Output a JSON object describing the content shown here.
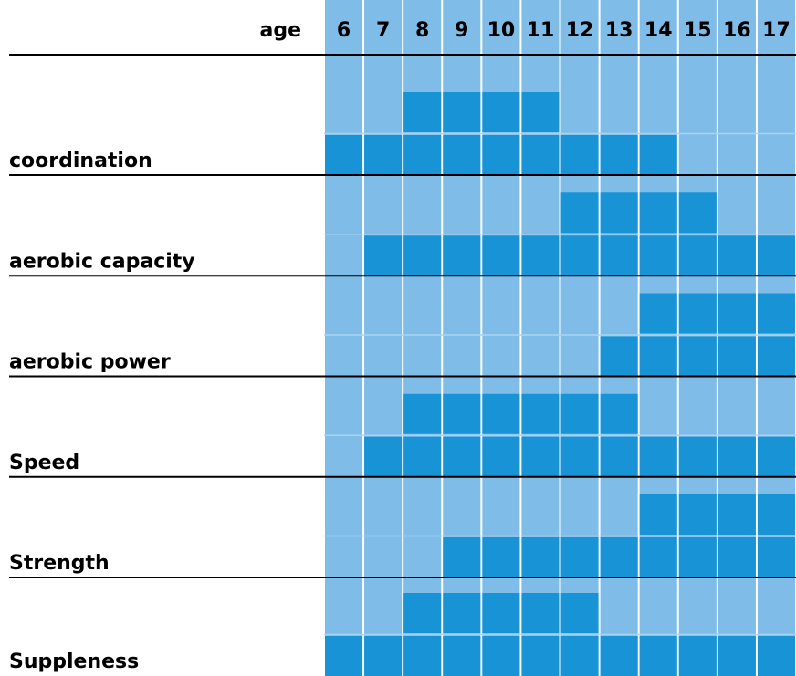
{
  "header": {
    "label": "age",
    "ages": [
      "6",
      "7",
      "8",
      "9",
      "10",
      "11",
      "12",
      "13",
      "14",
      "15",
      "16",
      "17"
    ]
  },
  "rows": [
    {
      "label": "coordination",
      "upper": [
        false,
        false,
        true,
        true,
        true,
        true,
        false,
        false,
        false,
        false,
        false,
        false
      ],
      "lower": [
        true,
        true,
        true,
        true,
        true,
        true,
        true,
        true,
        true,
        false,
        false,
        false
      ]
    },
    {
      "label": "aerobic capacity",
      "upper": [
        false,
        false,
        false,
        false,
        false,
        false,
        true,
        true,
        true,
        true,
        false,
        false
      ],
      "lower": [
        false,
        true,
        true,
        true,
        true,
        true,
        true,
        true,
        true,
        true,
        true,
        true
      ]
    },
    {
      "label": "aerobic power",
      "upper": [
        false,
        false,
        false,
        false,
        false,
        false,
        false,
        false,
        true,
        true,
        true,
        true
      ],
      "lower": [
        false,
        false,
        false,
        false,
        false,
        false,
        false,
        true,
        true,
        true,
        true,
        true
      ]
    },
    {
      "label": "Speed",
      "upper": [
        false,
        false,
        true,
        true,
        true,
        true,
        true,
        true,
        false,
        false,
        false,
        false
      ],
      "lower": [
        false,
        true,
        true,
        true,
        true,
        true,
        true,
        true,
        true,
        true,
        true,
        true
      ]
    },
    {
      "label": "Strength",
      "upper": [
        false,
        false,
        false,
        false,
        false,
        false,
        false,
        false,
        true,
        true,
        true,
        true
      ],
      "lower": [
        false,
        false,
        false,
        true,
        true,
        true,
        true,
        true,
        true,
        true,
        true,
        true
      ]
    },
    {
      "label": "Suppleness",
      "upper": [
        false,
        false,
        true,
        true,
        true,
        true,
        true,
        false,
        false,
        false,
        false,
        false
      ],
      "lower": [
        true,
        true,
        true,
        true,
        true,
        true,
        true,
        true,
        true,
        true,
        true,
        true
      ]
    }
  ]
}
